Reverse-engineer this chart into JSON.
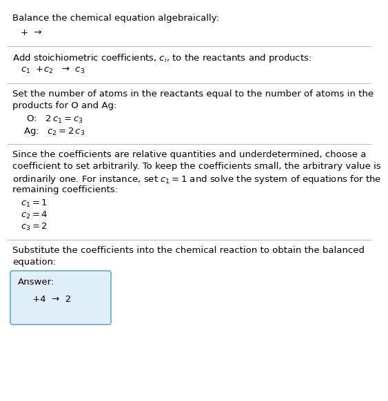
{
  "bg_color": "#ffffff",
  "text_color": "#000000",
  "answer_box_color": "#dff0f8",
  "answer_box_border": "#66aacc",
  "title": "Balance the chemical equation algebraically:",
  "line1": "+  →",
  "section1_intro": "Add stoichiometric coefficients, $c_i$, to the reactants and products:",
  "section1_eq": "$c_1$  +$c_2$   →  $c_3$",
  "section2_intro_1": "Set the number of atoms in the reactants equal to the number of atoms in the",
  "section2_intro_2": "products for O and Ag:",
  "section2_O": " O:   $2\\,c_1 = c_3$",
  "section2_Ag": "Ag:   $c_2 = 2\\,c_3$",
  "section3_intro_1": "Since the coefficients are relative quantities and underdetermined, choose a",
  "section3_intro_2": "coefficient to set arbitrarily. To keep the coefficients small, the arbitrary value is",
  "section3_intro_3": "ordinarily one. For instance, set $c_1 = 1$ and solve the system of equations for the",
  "section3_intro_4": "remaining coefficients:",
  "section3_c1": "$c_1 = 1$",
  "section3_c2": "$c_2 = 4$",
  "section3_c3": "$c_3 = 2$",
  "section4_intro_1": "Substitute the coefficients into the chemical reaction to obtain the balanced",
  "section4_intro_2": "equation:",
  "answer_label": "Answer:",
  "answer_eq": "     +4  →  2"
}
